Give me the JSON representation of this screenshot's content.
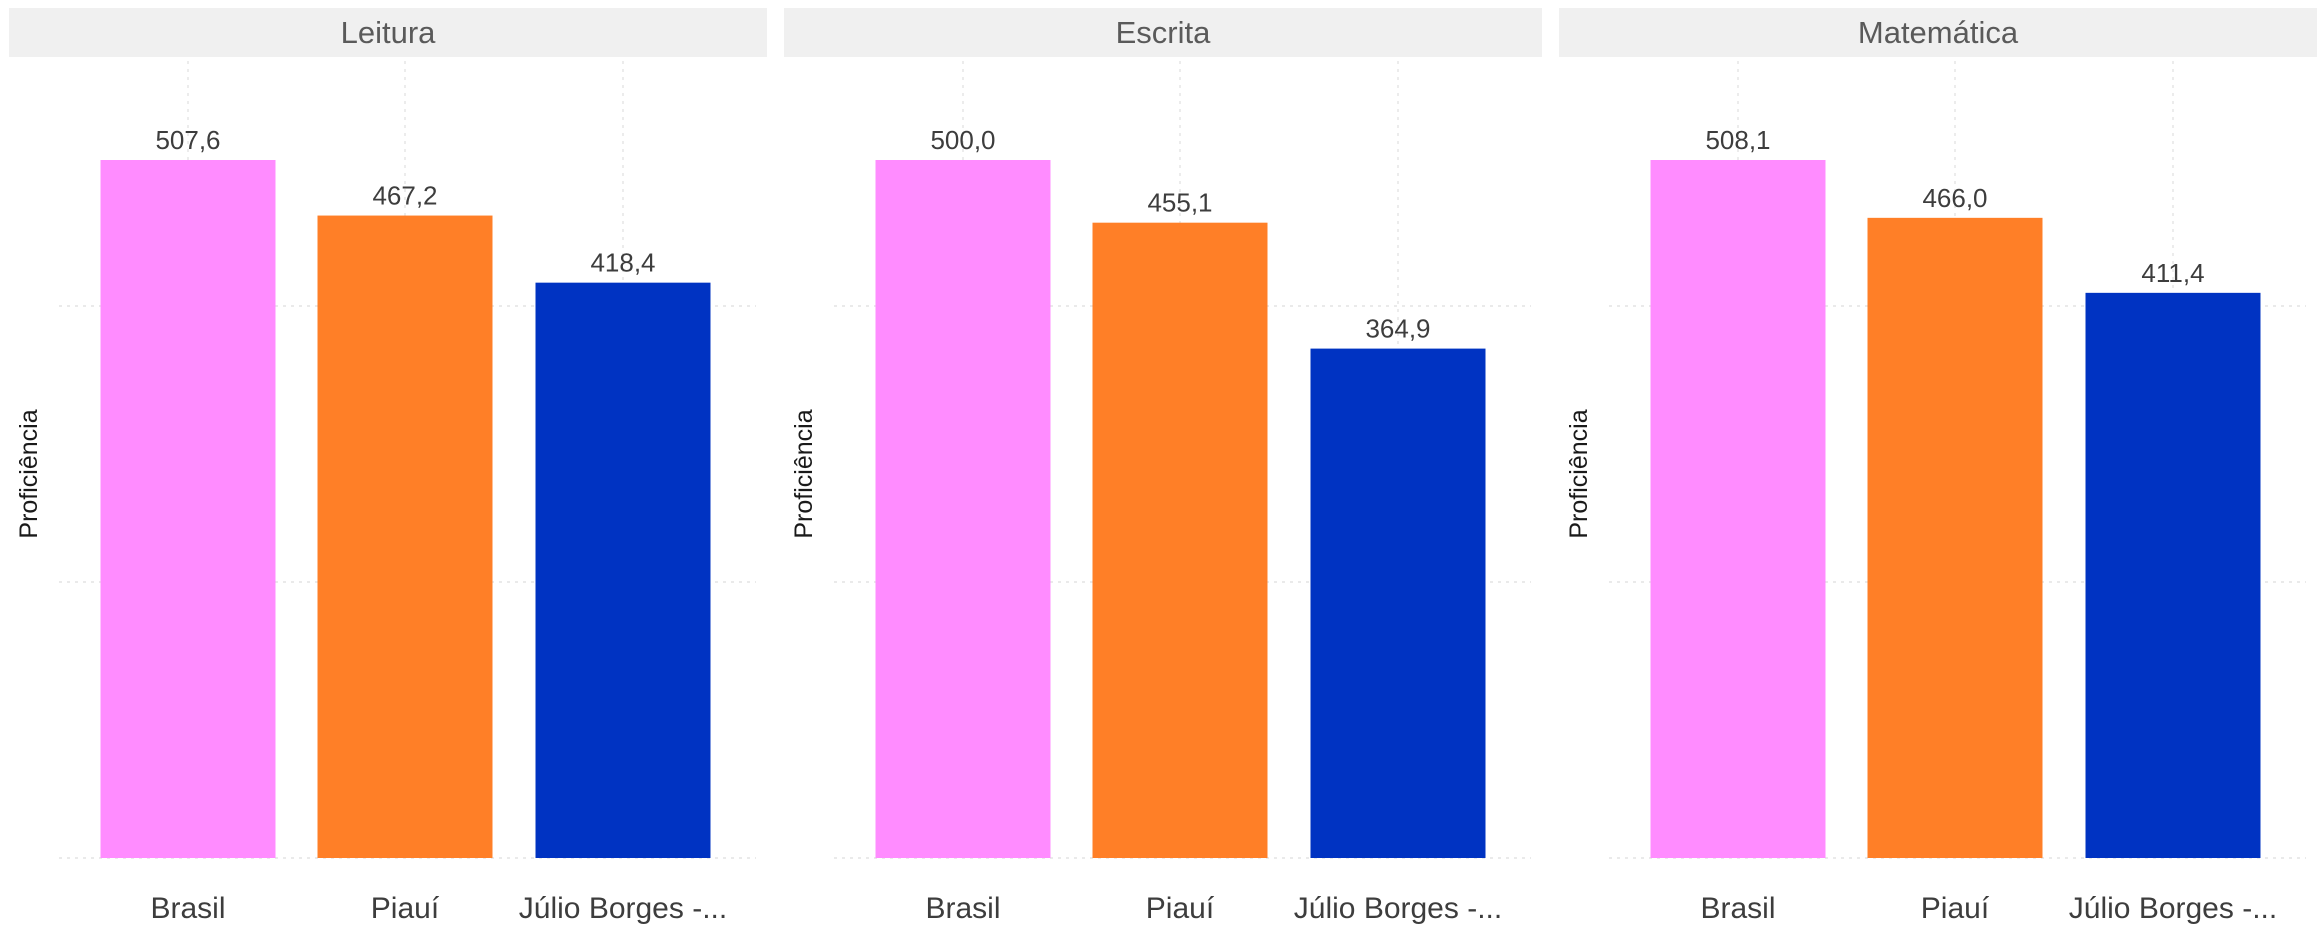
{
  "chart_data": [
    {
      "type": "bar",
      "title": "Leitura",
      "ylabel": "Proficiência",
      "categories": [
        "Brasil",
        "Piauí",
        "Júlio Borges -..."
      ],
      "values": [
        507.6,
        467.2,
        418.4
      ],
      "value_labels": [
        "507,6",
        "467,2",
        "418,4"
      ],
      "colors": [
        "#FF8CFF",
        "#FF7F27",
        "#0033C2"
      ],
      "ylim": [
        0,
        540
      ],
      "grid": true
    },
    {
      "type": "bar",
      "title": "Escrita",
      "ylabel": "Proficiência",
      "categories": [
        "Brasil",
        "Piauí",
        "Júlio Borges -..."
      ],
      "values": [
        500.0,
        455.1,
        364.9
      ],
      "value_labels": [
        "500,0",
        "455,1",
        "364,9"
      ],
      "colors": [
        "#FF8CFF",
        "#FF7F27",
        "#0033C2"
      ],
      "ylim": [
        0,
        532
      ],
      "grid": true
    },
    {
      "type": "bar",
      "title": "Matemática",
      "ylabel": "Proficiência",
      "categories": [
        "Brasil",
        "Piauí",
        "Júlio Borges -..."
      ],
      "values": [
        508.1,
        466.0,
        411.4
      ],
      "value_labels": [
        "508,1",
        "466,0",
        "411,4"
      ],
      "colors": [
        "#FF8CFF",
        "#FF7F27",
        "#0033C2"
      ],
      "ylim": [
        0,
        540
      ],
      "grid": true
    }
  ]
}
